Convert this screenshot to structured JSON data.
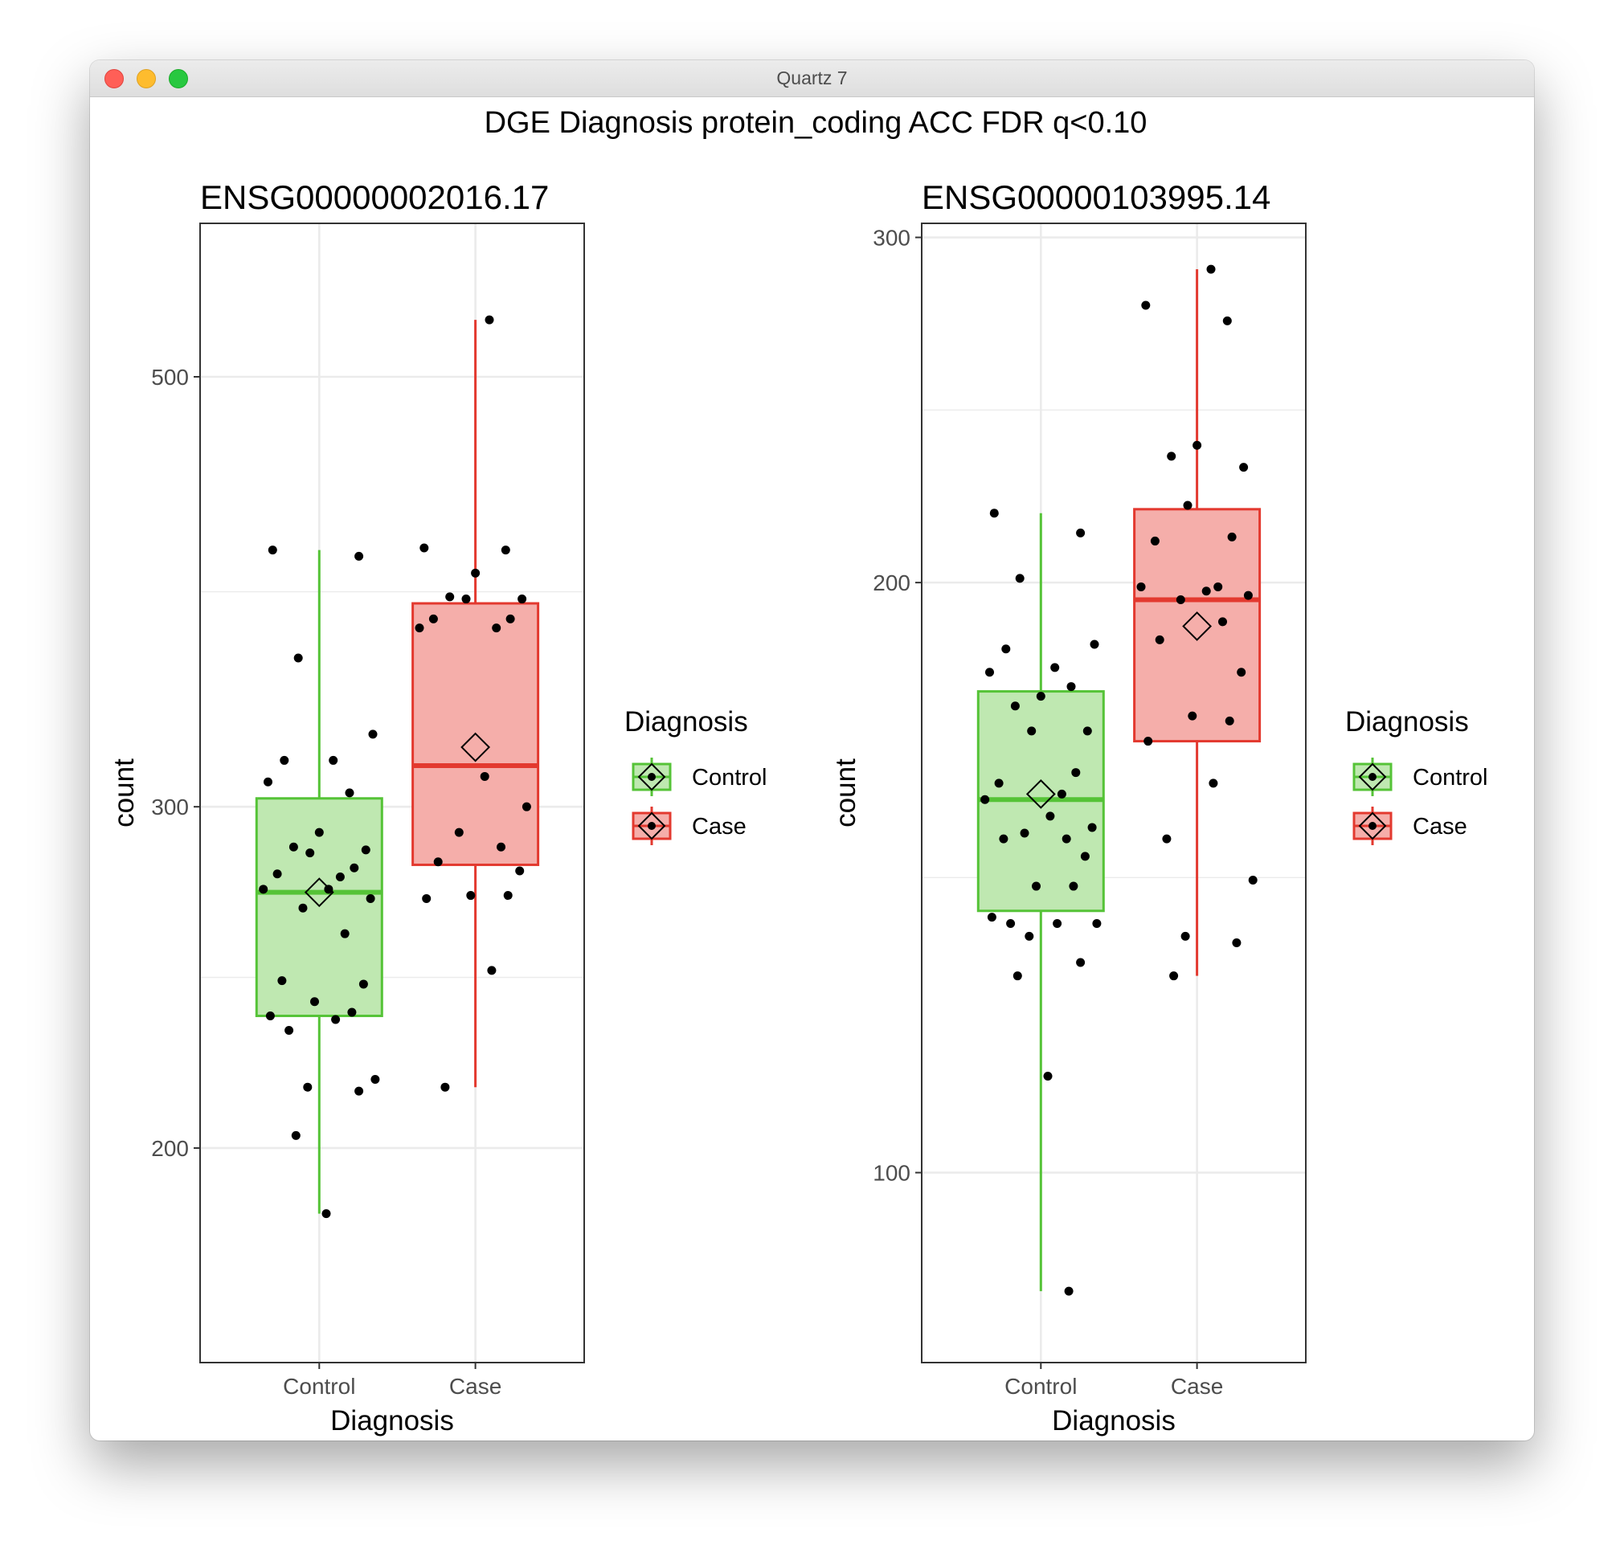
{
  "window": {
    "title": "Quartz 7",
    "buttons": [
      "close",
      "minimize",
      "zoom"
    ]
  },
  "colors": {
    "control_fill": "#bfe8b1",
    "control_line": "#55c337",
    "case_fill": "#f5aeaa",
    "case_line": "#e3392f",
    "grid": "#ebebeb",
    "panel_border": "#333333",
    "point": "#000000"
  },
  "chart_data": {
    "title": "DGE Diagnosis protein_coding ACC FDR q<0.10",
    "panels": [
      {
        "type": "box",
        "title": "ENSG00000002016.17",
        "xlabel": "Diagnosis",
        "ylabel": "count",
        "categories": [
          "Control",
          "Case"
        ],
        "ylim": [
          155,
          600
        ],
        "yscale": "log",
        "yticks": [
          200,
          300,
          500
        ],
        "ytick_labels": [
          "200",
          "300",
          "500"
        ],
        "legend": {
          "title": "Diagnosis",
          "entries": [
            "Control",
            "Case"
          ],
          "placement": "right"
        },
        "series": [
          {
            "name": "Control",
            "box": {
              "q1": 234,
              "median": 271,
              "q3": 303,
              "whisker_low": 185,
              "whisker_high": 407,
              "mean": 271
            },
            "points": [
              407,
              404,
              358,
              327,
              317,
              317,
              309,
              305,
              291,
              286,
              285,
              284,
              279,
              277,
              276,
              272,
              272,
              269,
              266,
              258,
              244,
              243,
              238,
              235,
              234,
              233,
              230,
              217,
              215,
              214,
              203,
              185
            ]
          },
          {
            "name": "Case",
            "box": {
              "q1": 280,
              "median": 315,
              "q3": 382,
              "whisker_low": 215,
              "whisker_high": 535,
              "mean": 322
            },
            "points": [
              535,
              408,
              407,
              396,
              385,
              384,
              384,
              375,
              375,
              371,
              371,
              311,
              300,
              291,
              286,
              281,
              278,
              270,
              270,
              269,
              247,
              215
            ]
          }
        ]
      },
      {
        "type": "box",
        "title": "ENSG00000103995.14",
        "xlabel": "Diagnosis",
        "ylabel": "count",
        "categories": [
          "Control",
          "Case"
        ],
        "ylim": [
          80,
          305
        ],
        "yscale": "log",
        "yticks": [
          100,
          200,
          300
        ],
        "ytick_labels": [
          "100",
          "200",
          "300"
        ],
        "legend": {
          "title": "Diagnosis",
          "entries": [
            "Control",
            "Case"
          ],
          "placement": "right"
        },
        "series": [
          {
            "name": "Control",
            "box": {
              "q1": 136,
              "median": 155,
              "q3": 176,
              "whisker_low": 87,
              "whisker_high": 217,
              "mean": 156
            },
            "points": [
              217,
              212,
              201,
              186,
              185,
              181,
              180,
              177,
              175,
              173,
              168,
              168,
              160,
              158,
              156,
              155,
              152,
              150,
              149,
              148,
              148,
              145,
              140,
              140,
              135,
              134,
              134,
              134,
              132,
              128,
              126,
              112,
              87
            ]
          },
          {
            "name": "Case",
            "box": {
              "q1": 166,
              "median": 196,
              "q3": 218,
              "whisker_low": 126,
              "whisker_high": 289,
              "mean": 190
            },
            "points": [
              289,
              277,
              272,
              235,
              232,
              229,
              219,
              211,
              210,
              199,
              199,
              198,
              197,
              196,
              191,
              187,
              180,
              171,
              170,
              166,
              158,
              148,
              141,
              132,
              131,
              126
            ]
          }
        ]
      }
    ]
  }
}
